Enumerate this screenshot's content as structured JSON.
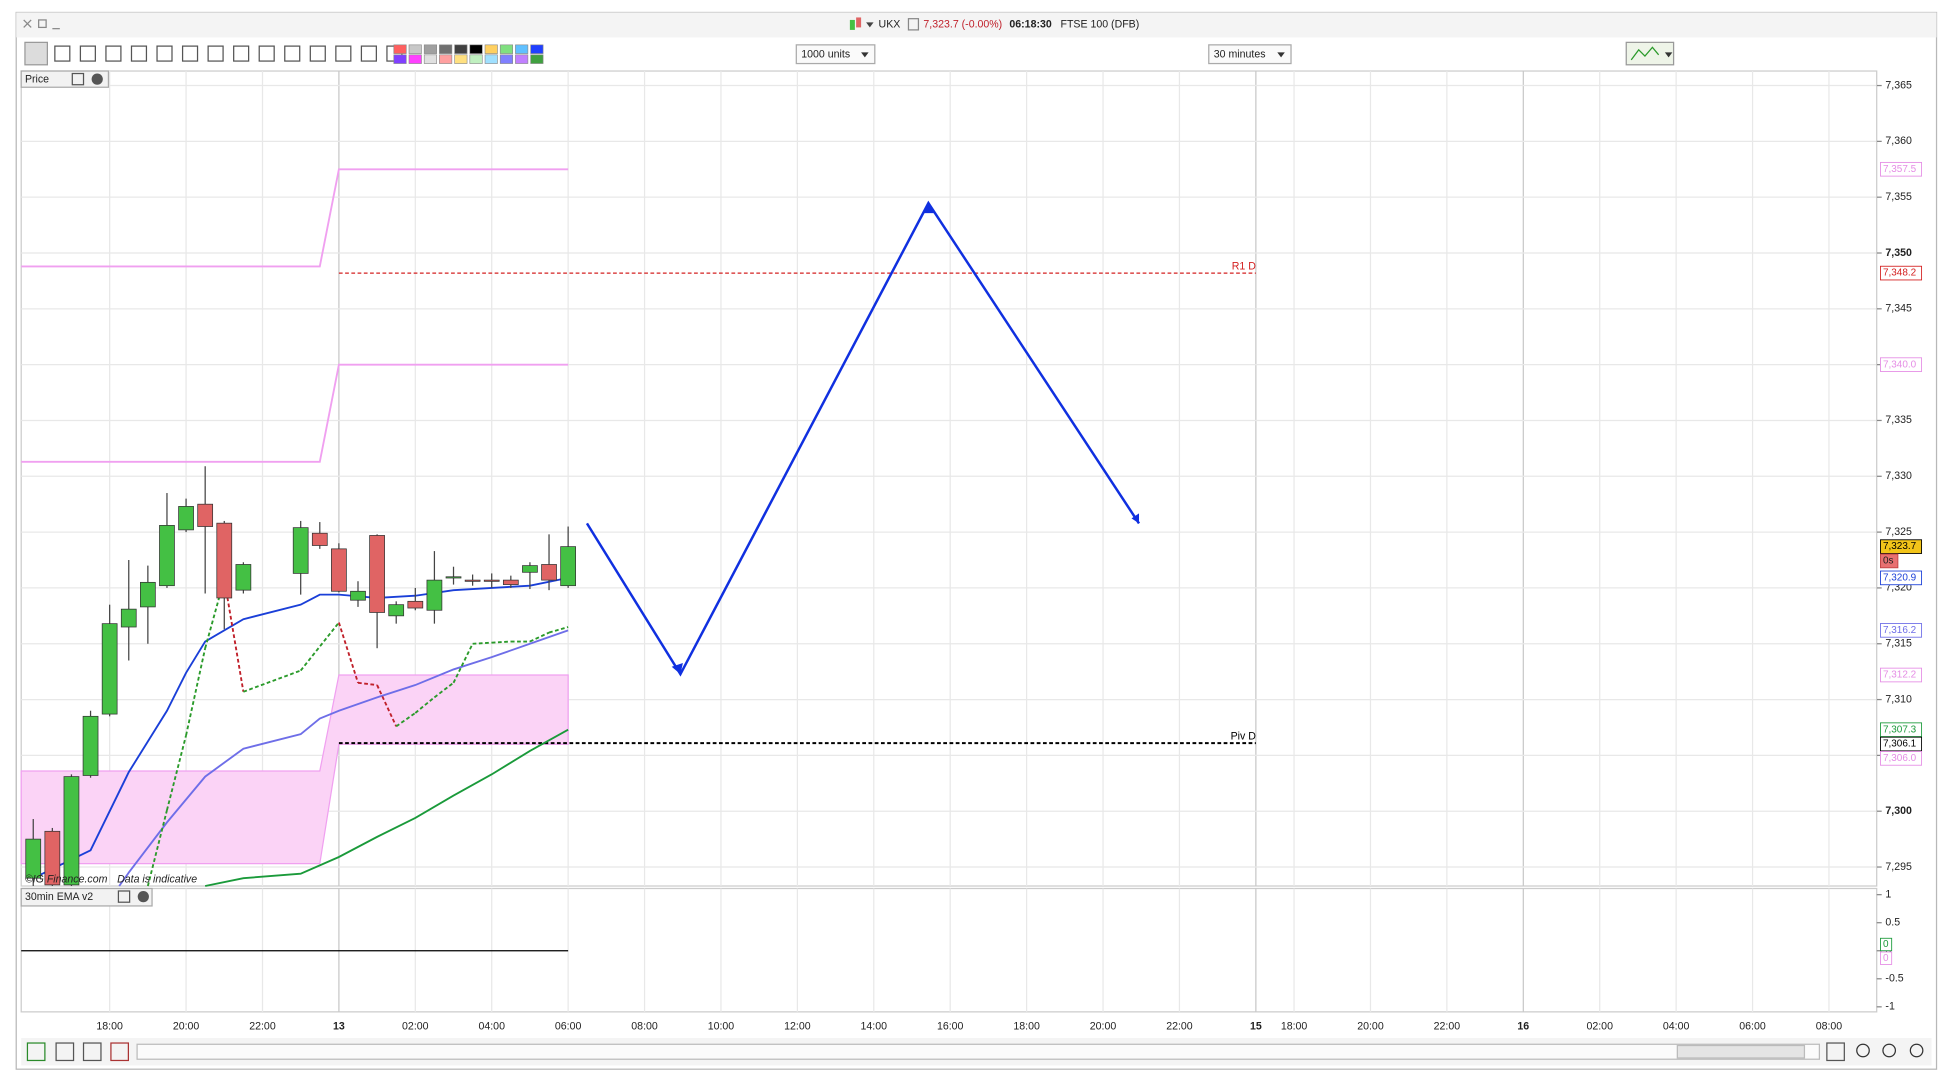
{
  "window": {
    "symbol": "UKX",
    "price": "7,323.7 (-0.00%)",
    "time": "06:18:30",
    "instrument": "FTSE 100 (DFB)"
  },
  "toolbar": {
    "units": "1000 units",
    "interval": "30 minutes"
  },
  "chart_data": {
    "type": "candlestick",
    "panel_label": "Price",
    "x": [
      -4,
      -3,
      -2,
      -1,
      0,
      1,
      2,
      3,
      4,
      5,
      6,
      7,
      10,
      11,
      12,
      13,
      14,
      15,
      16,
      17,
      18,
      19,
      20,
      21,
      22,
      23,
      24
    ],
    "open": [
      7294.0,
      7298.2,
      7293.4,
      7303.2,
      7308.7,
      7316.5,
      7318.3,
      7320.2,
      7325.2,
      7327.5,
      7325.8,
      7319.8,
      7321.3,
      7324.9,
      7323.5,
      7318.9,
      7324.7,
      7317.5,
      7318.8,
      7318.0,
      7321.0,
      7320.7,
      7320.7,
      7320.7,
      7321.4,
      7322.1,
      7320.2
    ],
    "high": [
      7299.3,
      7298.5,
      7303.3,
      7309.0,
      7318.5,
      7322.5,
      7322.0,
      7328.5,
      7328.0,
      7330.9,
      7326.0,
      7322.3,
      7326.0,
      7325.9,
      7324.0,
      7320.6,
      7324.8,
      7318.8,
      7320.0,
      7323.3,
      7321.9,
      7321.2,
      7321.3,
      7321.1,
      7322.3,
      7324.8,
      7325.5
    ],
    "low": [
      7293.3,
      7293.3,
      7293.3,
      7303.0,
      7308.5,
      7313.5,
      7315.0,
      7320.0,
      7325.0,
      7319.5,
      7316.3,
      7319.5,
      7319.4,
      7323.5,
      7319.6,
      7318.3,
      7314.6,
      7316.8,
      7318.0,
      7316.8,
      7320.3,
      7320.2,
      7320.0,
      7320.0,
      7319.9,
      7319.8,
      7320.0
    ],
    "close": [
      7297.5,
      7293.4,
      7303.1,
      7308.5,
      7316.8,
      7318.1,
      7320.5,
      7325.6,
      7327.3,
      7325.5,
      7319.1,
      7322.1,
      7325.4,
      7323.8,
      7319.7,
      7319.7,
      7317.8,
      7318.5,
      7318.2,
      7320.7,
      7321.0,
      7320.6,
      7320.6,
      7320.3,
      7322.0,
      7320.7,
      7323.7
    ],
    "up_color": "#44c044",
    "down_color": "#e06464",
    "xlim": [
      -4.63,
      92.5
    ],
    "xticks": [
      {
        "value": 0,
        "label": "18:00"
      },
      {
        "value": 4,
        "label": "20:00"
      },
      {
        "value": 8,
        "label": "22:00"
      },
      {
        "value": 12,
        "label": "13"
      },
      {
        "value": 16,
        "label": "02:00"
      },
      {
        "value": 20,
        "label": "04:00"
      },
      {
        "value": 24,
        "label": "06:00"
      },
      {
        "value": 28,
        "label": "08:00"
      },
      {
        "value": 32,
        "label": "10:00"
      },
      {
        "value": 36,
        "label": "12:00"
      },
      {
        "value": 40,
        "label": "14:00"
      },
      {
        "value": 44,
        "label": "16:00"
      },
      {
        "value": 48,
        "label": "18:00"
      },
      {
        "value": 52,
        "label": "20:00"
      },
      {
        "value": 56,
        "label": "22:00"
      },
      {
        "value": 60,
        "label": "15"
      },
      {
        "value": 62,
        "label": "18:00"
      },
      {
        "value": 66,
        "label": "20:00"
      },
      {
        "value": 70,
        "label": "22:00"
      },
      {
        "value": 74,
        "label": "16"
      },
      {
        "value": 78,
        "label": "02:00"
      },
      {
        "value": 82,
        "label": "04:00"
      },
      {
        "value": 86,
        "label": "06:00"
      },
      {
        "value": 90,
        "label": "08:00"
      }
    ],
    "ylim": [
      7293.3,
      7366.3
    ],
    "yticks": [
      {
        "value": 7295,
        "label": "7,295"
      },
      {
        "value": 7300,
        "label": "7,300"
      },
      {
        "value": 7305,
        "label": "7,305"
      },
      {
        "value": 7310,
        "label": "7,310"
      },
      {
        "value": 7315,
        "label": "7,315"
      },
      {
        "value": 7320,
        "label": "7,320"
      },
      {
        "value": 7325,
        "label": "7,325"
      },
      {
        "value": 7330,
        "label": "7,330"
      },
      {
        "value": 7335,
        "label": "7,335"
      },
      {
        "value": 7340,
        "label": "7,340"
      },
      {
        "value": 7345,
        "label": "7,345"
      },
      {
        "value": 7350,
        "label": "7,350"
      },
      {
        "value": 7355,
        "label": "7,355"
      },
      {
        "value": 7360,
        "label": "7,360"
      },
      {
        "value": 7365,
        "label": "7,365"
      }
    ],
    "grid": true,
    "lines": [
      {
        "color": "#1a3fd8",
        "x": [
          -4,
          -1,
          1,
          3,
          4,
          5,
          7,
          10,
          11,
          12,
          14,
          16,
          18,
          20,
          22,
          24
        ],
        "values": [
          7294.0,
          7296.5,
          7303.5,
          7309.0,
          7312.4,
          7315.2,
          7317.2,
          7318.5,
          7319.4,
          7319.4,
          7319.1,
          7319.3,
          7319.8,
          7320.0,
          7320.2,
          7320.9
        ]
      },
      {
        "color": "#6e6ee8",
        "x": [
          0.5,
          1,
          3,
          5,
          7,
          10,
          11,
          12,
          14,
          16,
          18,
          20,
          22,
          24
        ],
        "values": [
          7293.3,
          7294.5,
          7299.0,
          7303.1,
          7305.6,
          7306.9,
          7308.3,
          7309.0,
          7310.2,
          7311.3,
          7312.7,
          7313.8,
          7315.0,
          7316.2
        ]
      },
      {
        "color": "#1a9a3a",
        "x": [
          5,
          7,
          10,
          12,
          14,
          16,
          18,
          20,
          22,
          24
        ],
        "values": [
          7293.3,
          7294.0,
          7294.4,
          7295.9,
          7297.7,
          7299.4,
          7301.4,
          7303.3,
          7305.4,
          7307.3
        ]
      },
      {
        "color": "#f0a0f0",
        "x": [
          -4.63,
          11,
          12,
          24
        ],
        "values": [
          7348.8,
          7348.8,
          7357.5,
          7357.5
        ]
      },
      {
        "color": "#f0a0f0",
        "x": [
          -4.63,
          11,
          12,
          24
        ],
        "values": [
          7331.3,
          7331.3,
          7340.0,
          7340.0
        ]
      }
    ],
    "dashed_line": {
      "color": "#2a9a2a",
      "falling_color": "#c0202a",
      "x": [
        2,
        3,
        4,
        5,
        6,
        7,
        10,
        12,
        13,
        14,
        15,
        16,
        17,
        18,
        19,
        20,
        21,
        22,
        23,
        24
      ],
      "values": [
        7293.3,
        7300.1,
        7306.8,
        7314.6,
        7320.8,
        7310.7,
        7312.6,
        7316.9,
        7311.5,
        7311.3,
        7307.6,
        7308.8,
        7310.2,
        7311.5,
        7315.0,
        7315.1,
        7315.2,
        7315.2,
        7316.0,
        7316.5
      ]
    },
    "band": {
      "color": "#fbd3f6",
      "edge": "#f0a0f0",
      "x": [
        -4.63,
        11,
        12,
        24
      ],
      "upper": [
        7303.6,
        7303.6,
        7312.2,
        7312.2
      ],
      "lower": [
        7295.3,
        7295.3,
        7306.0,
        7306.0
      ]
    },
    "levels": [
      {
        "label": "R1 D",
        "value": 7348.2,
        "color": "#d42020",
        "from": 12,
        "to": 60
      },
      {
        "label": "Piv D",
        "value": 7306.1,
        "color": "#000000",
        "from": 12,
        "to": 60
      }
    ],
    "price_labels": [
      {
        "value": 7357.5,
        "label": "7,357.5",
        "color": "#e58de5"
      },
      {
        "value": 7348.2,
        "label": "7,348.2",
        "color": "#d42020"
      },
      {
        "value": 7340.0,
        "label": "7,340.0",
        "color": "#e58de5"
      },
      {
        "value": 7323.7,
        "label": "7,323.7",
        "color": "#000000",
        "background": "#f2c419"
      },
      {
        "value": 7320.9,
        "label": "7,320.9",
        "color": "#1a3fd8"
      },
      {
        "value": 7316.2,
        "label": "7,316.2",
        "color": "#6e6ee8"
      },
      {
        "value": 7312.2,
        "label": "7,312.2",
        "color": "#e58de5"
      },
      {
        "value": 7307.3,
        "label": "7,307.3",
        "color": "#1a9a3a"
      },
      {
        "value": 7306.1,
        "label": "7,306.1",
        "color": "#000000"
      },
      {
        "value": 7306.0,
        "label": "7,306.0",
        "color": "#e58de5"
      }
    ],
    "countdown": "0s",
    "watermark": "©IG Finance.com",
    "disclaimer": "Data is indicative",
    "indicator": {
      "label": "30min EMA v2",
      "ylim": [
        -1.09,
        1.11
      ],
      "yticks": [
        1,
        0.5,
        0,
        -0.5,
        -1
      ],
      "line": {
        "color": "#000000",
        "x": [
          -4.63,
          24
        ],
        "values": [
          0,
          0
        ]
      },
      "price_labels": [
        {
          "value": 0,
          "label": "0",
          "color": "#1a9a3a"
        },
        {
          "value": 0,
          "label": "0",
          "color": "#e58de5"
        }
      ]
    }
  }
}
